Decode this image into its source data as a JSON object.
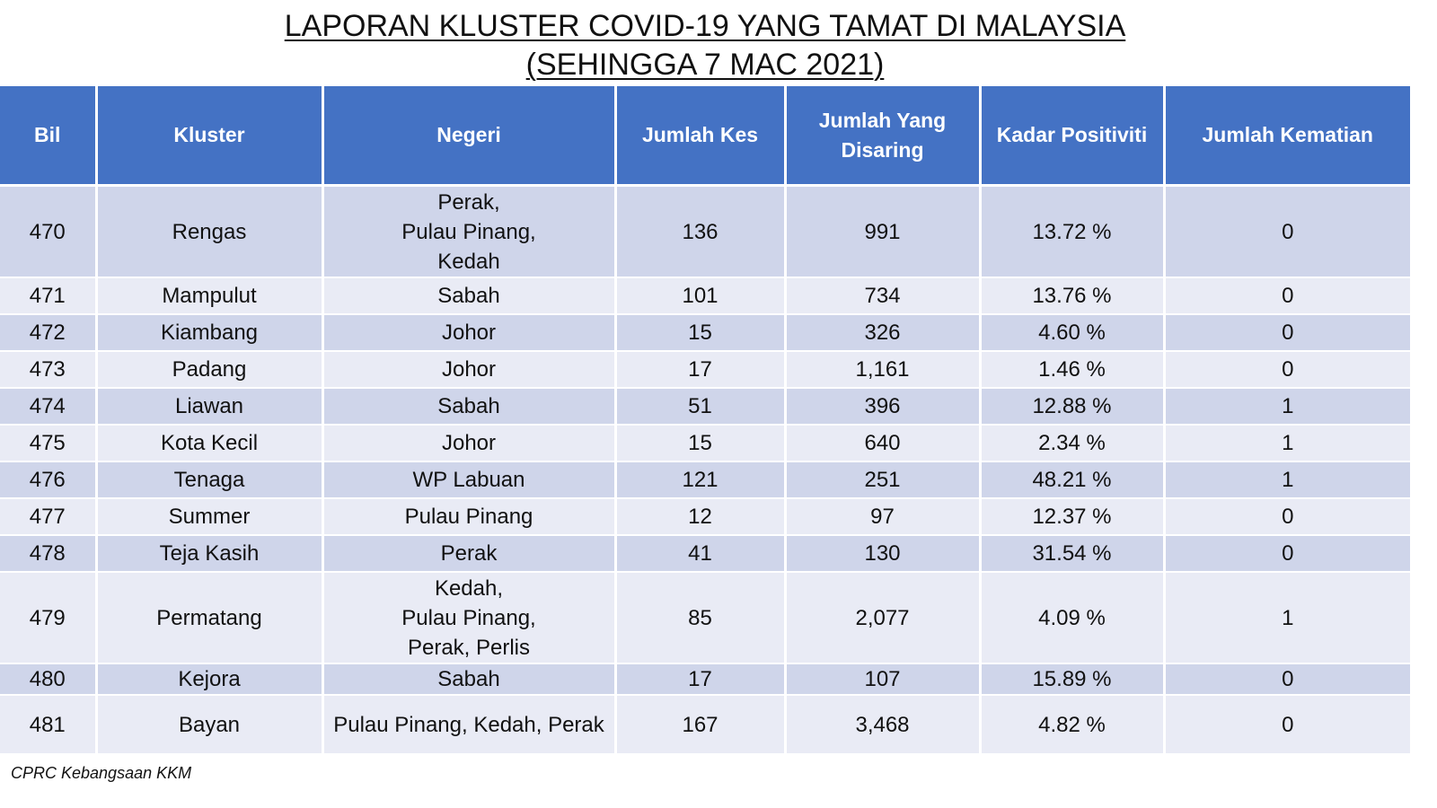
{
  "title": {
    "line1": "LAPORAN KLUSTER COVID-19 YANG TAMAT DI MALAYSIA",
    "line2": "(SEHINGGA 7 MAC 2021)"
  },
  "table": {
    "headers": [
      "Bil",
      "Kluster",
      "Negeri",
      "Jumlah Kes",
      "Jumlah Yang Disaring",
      "Kadar Positiviti",
      "Jumlah Kematian"
    ],
    "rows": [
      {
        "bil": "470",
        "kluster": "Rengas",
        "negeri": "Perak,\nPulau Pinang,\nKedah",
        "kes": "136",
        "disaring": "991",
        "positiviti": "13.72 %",
        "kematian": "0"
      },
      {
        "bil": "471",
        "kluster": "Mampulut",
        "negeri": "Sabah",
        "kes": "101",
        "disaring": "734",
        "positiviti": "13.76 %",
        "kematian": "0"
      },
      {
        "bil": "472",
        "kluster": "Kiambang",
        "negeri": "Johor",
        "kes": "15",
        "disaring": "326",
        "positiviti": "4.60 %",
        "kematian": "0"
      },
      {
        "bil": "473",
        "kluster": "Padang",
        "negeri": "Johor",
        "kes": "17",
        "disaring": "1,161",
        "positiviti": "1.46 %",
        "kematian": "0"
      },
      {
        "bil": "474",
        "kluster": "Liawan",
        "negeri": "Sabah",
        "kes": "51",
        "disaring": "396",
        "positiviti": "12.88 %",
        "kematian": "1"
      },
      {
        "bil": "475",
        "kluster": "Kota Kecil",
        "negeri": "Johor",
        "kes": "15",
        "disaring": "640",
        "positiviti": "2.34 %",
        "kematian": "1"
      },
      {
        "bil": "476",
        "kluster": "Tenaga",
        "negeri": "WP Labuan",
        "kes": "121",
        "disaring": "251",
        "positiviti": "48.21 %",
        "kematian": "1"
      },
      {
        "bil": "477",
        "kluster": "Summer",
        "negeri": "Pulau Pinang",
        "kes": "12",
        "disaring": "97",
        "positiviti": "12.37 %",
        "kematian": "0"
      },
      {
        "bil": "478",
        "kluster": "Teja Kasih",
        "negeri": "Perak",
        "kes": "41",
        "disaring": "130",
        "positiviti": "31.54 %",
        "kematian": "0"
      },
      {
        "bil": "479",
        "kluster": "Permatang",
        "negeri": "Kedah,\nPulau Pinang,\nPerak, Perlis",
        "kes": "85",
        "disaring": "2,077",
        "positiviti": "4.09 %",
        "kematian": "1"
      },
      {
        "bil": "480",
        "kluster": "Kejora",
        "negeri": "Sabah",
        "kes": "17",
        "disaring": "107",
        "positiviti": "15.89 %",
        "kematian": "0"
      },
      {
        "bil": "481",
        "kluster": "Bayan",
        "negeri": "Pulau Pinang, Kedah, Perak",
        "kes": "167",
        "disaring": "3,468",
        "positiviti": "4.82 %",
        "kematian": "0"
      }
    ]
  },
  "footer": "CPRC Kebangsaan KKM",
  "colors": {
    "header_bg": "#4472c4",
    "row_dark": "#cfd5ea",
    "row_light": "#e9ebf5"
  }
}
